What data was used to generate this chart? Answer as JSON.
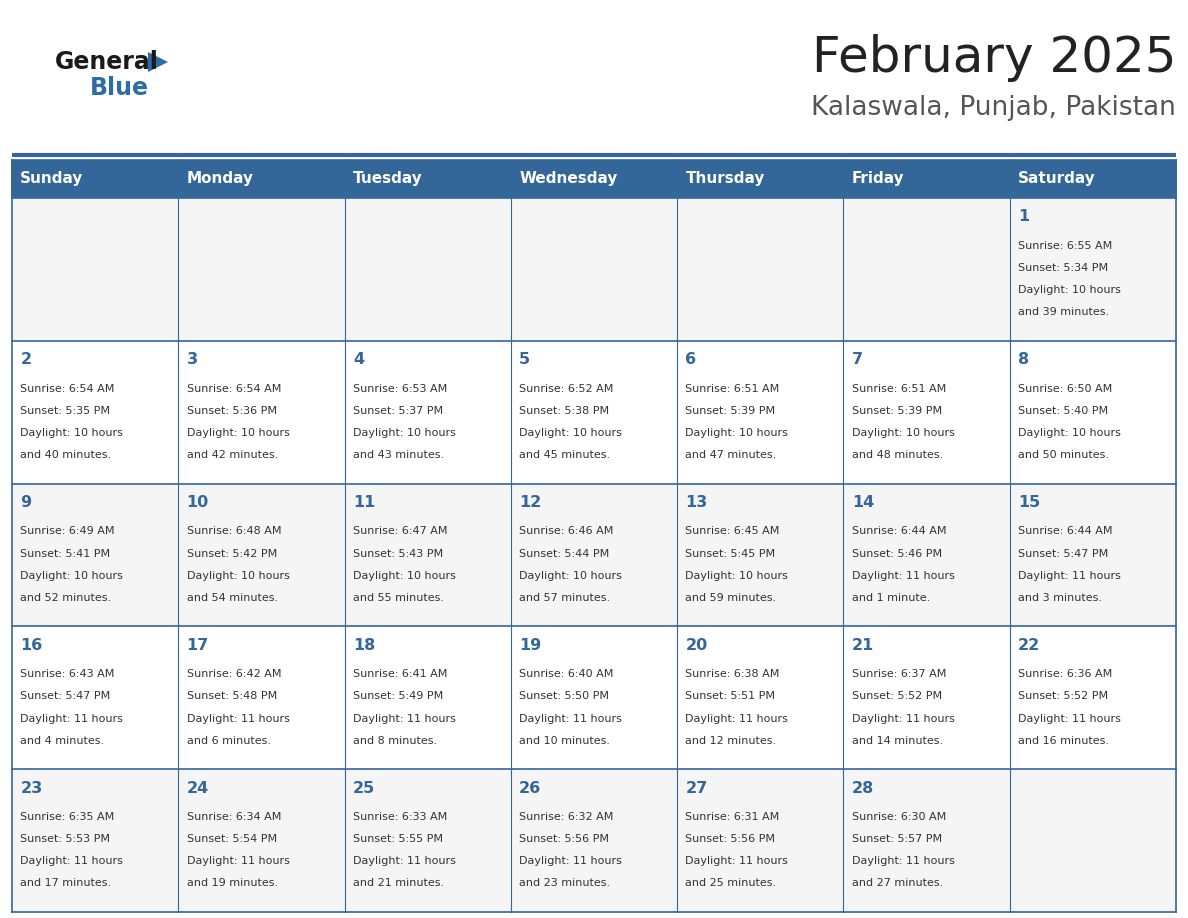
{
  "title": "February 2025",
  "subtitle": "Kalaswala, Punjab, Pakistan",
  "header_bg": "#336699",
  "header_text_color": "#FFFFFF",
  "cell_bg_row0": "#F5F5F5",
  "cell_bg_row1": "#FFFFFF",
  "cell_bg_row2": "#F5F5F5",
  "cell_bg_row3": "#FFFFFF",
  "cell_bg_row4": "#F5F5F5",
  "cell_border_color": "#336699",
  "day_headers": [
    "Sunday",
    "Monday",
    "Tuesday",
    "Wednesday",
    "Thursday",
    "Friday",
    "Saturday"
  ],
  "title_color": "#222222",
  "subtitle_color": "#555555",
  "day_number_color": "#336699",
  "info_color": "#333333",
  "calendar": [
    [
      null,
      null,
      null,
      null,
      null,
      null,
      1
    ],
    [
      2,
      3,
      4,
      5,
      6,
      7,
      8
    ],
    [
      9,
      10,
      11,
      12,
      13,
      14,
      15
    ],
    [
      16,
      17,
      18,
      19,
      20,
      21,
      22
    ],
    [
      23,
      24,
      25,
      26,
      27,
      28,
      null
    ]
  ],
  "day_data": {
    "1": {
      "sunrise": "6:55 AM",
      "sunset": "5:34 PM",
      "daylight_line1": "Daylight: 10 hours",
      "daylight_line2": "and 39 minutes."
    },
    "2": {
      "sunrise": "6:54 AM",
      "sunset": "5:35 PM",
      "daylight_line1": "Daylight: 10 hours",
      "daylight_line2": "and 40 minutes."
    },
    "3": {
      "sunrise": "6:54 AM",
      "sunset": "5:36 PM",
      "daylight_line1": "Daylight: 10 hours",
      "daylight_line2": "and 42 minutes."
    },
    "4": {
      "sunrise": "6:53 AM",
      "sunset": "5:37 PM",
      "daylight_line1": "Daylight: 10 hours",
      "daylight_line2": "and 43 minutes."
    },
    "5": {
      "sunrise": "6:52 AM",
      "sunset": "5:38 PM",
      "daylight_line1": "Daylight: 10 hours",
      "daylight_line2": "and 45 minutes."
    },
    "6": {
      "sunrise": "6:51 AM",
      "sunset": "5:39 PM",
      "daylight_line1": "Daylight: 10 hours",
      "daylight_line2": "and 47 minutes."
    },
    "7": {
      "sunrise": "6:51 AM",
      "sunset": "5:39 PM",
      "daylight_line1": "Daylight: 10 hours",
      "daylight_line2": "and 48 minutes."
    },
    "8": {
      "sunrise": "6:50 AM",
      "sunset": "5:40 PM",
      "daylight_line1": "Daylight: 10 hours",
      "daylight_line2": "and 50 minutes."
    },
    "9": {
      "sunrise": "6:49 AM",
      "sunset": "5:41 PM",
      "daylight_line1": "Daylight: 10 hours",
      "daylight_line2": "and 52 minutes."
    },
    "10": {
      "sunrise": "6:48 AM",
      "sunset": "5:42 PM",
      "daylight_line1": "Daylight: 10 hours",
      "daylight_line2": "and 54 minutes."
    },
    "11": {
      "sunrise": "6:47 AM",
      "sunset": "5:43 PM",
      "daylight_line1": "Daylight: 10 hours",
      "daylight_line2": "and 55 minutes."
    },
    "12": {
      "sunrise": "6:46 AM",
      "sunset": "5:44 PM",
      "daylight_line1": "Daylight: 10 hours",
      "daylight_line2": "and 57 minutes."
    },
    "13": {
      "sunrise": "6:45 AM",
      "sunset": "5:45 PM",
      "daylight_line1": "Daylight: 10 hours",
      "daylight_line2": "and 59 minutes."
    },
    "14": {
      "sunrise": "6:44 AM",
      "sunset": "5:46 PM",
      "daylight_line1": "Daylight: 11 hours",
      "daylight_line2": "and 1 minute."
    },
    "15": {
      "sunrise": "6:44 AM",
      "sunset": "5:47 PM",
      "daylight_line1": "Daylight: 11 hours",
      "daylight_line2": "and 3 minutes."
    },
    "16": {
      "sunrise": "6:43 AM",
      "sunset": "5:47 PM",
      "daylight_line1": "Daylight: 11 hours",
      "daylight_line2": "and 4 minutes."
    },
    "17": {
      "sunrise": "6:42 AM",
      "sunset": "5:48 PM",
      "daylight_line1": "Daylight: 11 hours",
      "daylight_line2": "and 6 minutes."
    },
    "18": {
      "sunrise": "6:41 AM",
      "sunset": "5:49 PM",
      "daylight_line1": "Daylight: 11 hours",
      "daylight_line2": "and 8 minutes."
    },
    "19": {
      "sunrise": "6:40 AM",
      "sunset": "5:50 PM",
      "daylight_line1": "Daylight: 11 hours",
      "daylight_line2": "and 10 minutes."
    },
    "20": {
      "sunrise": "6:38 AM",
      "sunset": "5:51 PM",
      "daylight_line1": "Daylight: 11 hours",
      "daylight_line2": "and 12 minutes."
    },
    "21": {
      "sunrise": "6:37 AM",
      "sunset": "5:52 PM",
      "daylight_line1": "Daylight: 11 hours",
      "daylight_line2": "and 14 minutes."
    },
    "22": {
      "sunrise": "6:36 AM",
      "sunset": "5:52 PM",
      "daylight_line1": "Daylight: 11 hours",
      "daylight_line2": "and 16 minutes."
    },
    "23": {
      "sunrise": "6:35 AM",
      "sunset": "5:53 PM",
      "daylight_line1": "Daylight: 11 hours",
      "daylight_line2": "and 17 minutes."
    },
    "24": {
      "sunrise": "6:34 AM",
      "sunset": "5:54 PM",
      "daylight_line1": "Daylight: 11 hours",
      "daylight_line2": "and 19 minutes."
    },
    "25": {
      "sunrise": "6:33 AM",
      "sunset": "5:55 PM",
      "daylight_line1": "Daylight: 11 hours",
      "daylight_line2": "and 21 minutes."
    },
    "26": {
      "sunrise": "6:32 AM",
      "sunset": "5:56 PM",
      "daylight_line1": "Daylight: 11 hours",
      "daylight_line2": "and 23 minutes."
    },
    "27": {
      "sunrise": "6:31 AM",
      "sunset": "5:56 PM",
      "daylight_line1": "Daylight: 11 hours",
      "daylight_line2": "and 25 minutes."
    },
    "28": {
      "sunrise": "6:30 AM",
      "sunset": "5:57 PM",
      "daylight_line1": "Daylight: 11 hours",
      "daylight_line2": "and 27 minutes."
    }
  }
}
